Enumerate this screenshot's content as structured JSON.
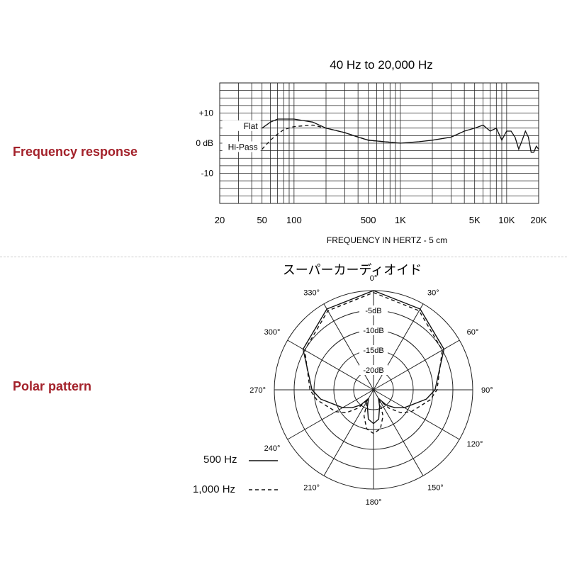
{
  "sections": {
    "frequency_label": "Frequency response",
    "polar_label": "Polar pattern"
  },
  "colors": {
    "label_red": "#a3212a",
    "ink": "#111111"
  },
  "chart_data": [
    {
      "type": "line",
      "title": "40 Hz to 20,000 Hz",
      "xlabel": "FREQUENCY IN HERTZ - 5 cm",
      "ylabel": "",
      "x_scale": "log",
      "xlim": [
        20,
        20000
      ],
      "ylim": [
        -20,
        20
      ],
      "grid": true,
      "x_tick_labels": [
        {
          "value": 20,
          "label": "20"
        },
        {
          "value": 50,
          "label": "50"
        },
        {
          "value": 100,
          "label": "100"
        },
        {
          "value": 500,
          "label": "500"
        },
        {
          "value": 1000,
          "label": "1K"
        },
        {
          "value": 5000,
          "label": "5K"
        },
        {
          "value": 10000,
          "label": "10K"
        },
        {
          "value": 20000,
          "label": "20K"
        }
      ],
      "y_tick_labels": [
        {
          "value": 10,
          "label": "+10"
        },
        {
          "value": 0,
          "label": "0 dB"
        },
        {
          "value": -10,
          "label": "-10"
        }
      ],
      "series": [
        {
          "name": "Flat",
          "style": "solid",
          "points": [
            [
              50,
              5
            ],
            [
              60,
              7
            ],
            [
              70,
              8
            ],
            [
              80,
              8
            ],
            [
              100,
              8
            ],
            [
              150,
              7
            ],
            [
              200,
              5
            ],
            [
              300,
              3.5
            ],
            [
              400,
              2
            ],
            [
              500,
              1
            ],
            [
              700,
              0.5
            ],
            [
              1000,
              0
            ],
            [
              1500,
              0.5
            ],
            [
              2000,
              1
            ],
            [
              3000,
              2
            ],
            [
              4000,
              4
            ],
            [
              5000,
              5
            ],
            [
              6000,
              6
            ],
            [
              7000,
              4
            ],
            [
              8000,
              5
            ],
            [
              9000,
              1
            ],
            [
              10000,
              4
            ],
            [
              11000,
              4
            ],
            [
              12000,
              2
            ],
            [
              13000,
              -2
            ],
            [
              14000,
              1
            ],
            [
              15000,
              4
            ],
            [
              16000,
              2
            ],
            [
              17000,
              -3
            ],
            [
              18000,
              -3
            ],
            [
              19000,
              -1
            ],
            [
              20000,
              -2
            ]
          ]
        },
        {
          "name": "Hi-Pass",
          "style": "dashed",
          "points": [
            [
              50,
              -2
            ],
            [
              60,
              1
            ],
            [
              70,
              3
            ],
            [
              80,
              4.5
            ],
            [
              100,
              5.5
            ],
            [
              150,
              6
            ],
            [
              200,
              5
            ],
            [
              300,
              3.5
            ],
            [
              500,
              1
            ],
            [
              1000,
              0
            ]
          ]
        }
      ]
    },
    {
      "type": "polar",
      "title": "スーパーカーディオイド",
      "angle_labels": [
        {
          "angle": 0,
          "label": "0°"
        },
        {
          "angle": 30,
          "label": "30°"
        },
        {
          "angle": 60,
          "label": "60°"
        },
        {
          "angle": 90,
          "label": "90°"
        },
        {
          "angle": 120,
          "label": "120°"
        },
        {
          "angle": 150,
          "label": "150°"
        },
        {
          "angle": 180,
          "label": "180°"
        },
        {
          "angle": 210,
          "label": "210°"
        },
        {
          "angle": 240,
          "label": "240°"
        },
        {
          "angle": 270,
          "label": "270°"
        },
        {
          "angle": 300,
          "label": "300°"
        },
        {
          "angle": 330,
          "label": "330°"
        }
      ],
      "ring_levels": [
        0,
        -5,
        -10,
        -15,
        -20,
        -25
      ],
      "ring_labels": [
        {
          "db": -5,
          "label": "-5dB"
        },
        {
          "db": -10,
          "label": "-10dB"
        },
        {
          "db": -15,
          "label": "-15dB"
        },
        {
          "db": -20,
          "label": "-20dB"
        }
      ],
      "series": [
        {
          "name": "500 Hz",
          "style": "solid",
          "points": [
            [
              0,
              0
            ],
            [
              30,
              -1.5
            ],
            [
              60,
              -4.5
            ],
            [
              90,
              -9.5
            ],
            [
              100,
              -11.5
            ],
            [
              120,
              -16
            ],
            [
              130,
              -18
            ],
            [
              140,
              -20
            ],
            [
              150,
              -22.5
            ],
            [
              160,
              -20.5
            ],
            [
              170,
              -17.5
            ],
            [
              180,
              -16.5
            ],
            [
              190,
              -17.5
            ],
            [
              200,
              -20.5
            ],
            [
              210,
              -22.5
            ],
            [
              220,
              -20
            ],
            [
              230,
              -18
            ],
            [
              240,
              -16
            ],
            [
              260,
              -11.5
            ],
            [
              270,
              -9.5
            ],
            [
              300,
              -4.5
            ],
            [
              330,
              -1.5
            ]
          ]
        },
        {
          "name": "1,000 Hz",
          "style": "dashed",
          "points": [
            [
              0,
              -0.5
            ],
            [
              30,
              -2
            ],
            [
              60,
              -5
            ],
            [
              90,
              -9
            ],
            [
              100,
              -10.5
            ],
            [
              120,
              -14
            ],
            [
              130,
              -16
            ],
            [
              140,
              -19
            ],
            [
              150,
              -22
            ],
            [
              160,
              -18
            ],
            [
              170,
              -15
            ],
            [
              180,
              -14
            ],
            [
              190,
              -15
            ],
            [
              200,
              -18
            ],
            [
              210,
              -22
            ],
            [
              220,
              -19
            ],
            [
              230,
              -16
            ],
            [
              240,
              -14
            ],
            [
              260,
              -10.5
            ],
            [
              270,
              -9
            ],
            [
              300,
              -5
            ],
            [
              330,
              -2
            ]
          ]
        }
      ],
      "legend": [
        {
          "label": "500 Hz",
          "style": "solid"
        },
        {
          "label": "1,000 Hz",
          "style": "dashed"
        }
      ]
    }
  ]
}
